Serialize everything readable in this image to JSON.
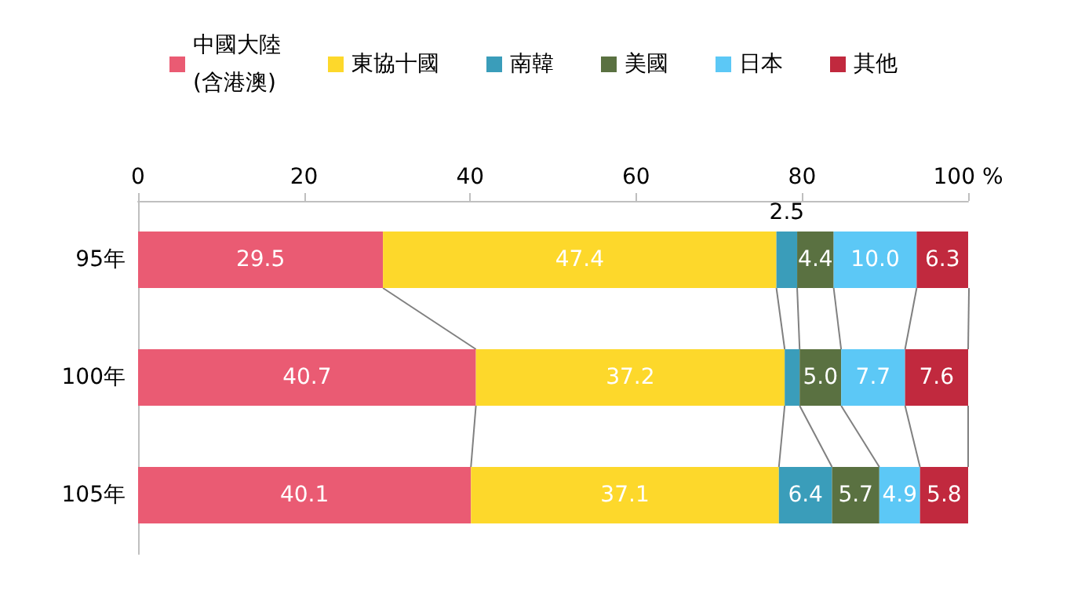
{
  "chart_data": {
    "type": "bar",
    "orientation": "horizontal",
    "stacked": true,
    "categories": [
      "95年",
      "100年",
      "105年"
    ],
    "xlim": [
      0,
      100
    ],
    "xticks": [
      0,
      20,
      40,
      60,
      80,
      {
        "value": 100,
        "label": "100 %"
      }
    ],
    "grid": false,
    "legend": "top",
    "series": [
      {
        "name": "中國大陸\n(含港澳)",
        "color": "#ea5b73",
        "values": [
          29.5,
          40.7,
          40.1
        ],
        "value_labels": [
          "29.5",
          "40.7",
          "40.1"
        ]
      },
      {
        "name": "東協十國",
        "color": "#fdd82b",
        "values": [
          47.4,
          37.2,
          37.1
        ],
        "value_labels": [
          "47.4",
          "37.2",
          "37.1"
        ]
      },
      {
        "name": "南韓",
        "color": "#3a9dba",
        "values": [
          2.5,
          1.8,
          6.4
        ],
        "value_labels": [
          "2.5",
          null,
          "6.4"
        ]
      },
      {
        "name": "美國",
        "color": "#5a7141",
        "values": [
          4.4,
          5.0,
          5.7
        ],
        "value_labels": [
          "4.4",
          "5.0",
          "5.7"
        ]
      },
      {
        "name": "日本",
        "color": "#5cc8f6",
        "values": [
          10.0,
          7.7,
          4.9
        ],
        "value_labels": [
          "10.0",
          "7.7",
          "4.9"
        ]
      },
      {
        "name": "其他",
        "color": "#c1293e",
        "values": [
          6.3,
          7.6,
          5.8
        ],
        "value_labels": [
          "6.3",
          "7.6",
          "5.8"
        ]
      }
    ]
  }
}
